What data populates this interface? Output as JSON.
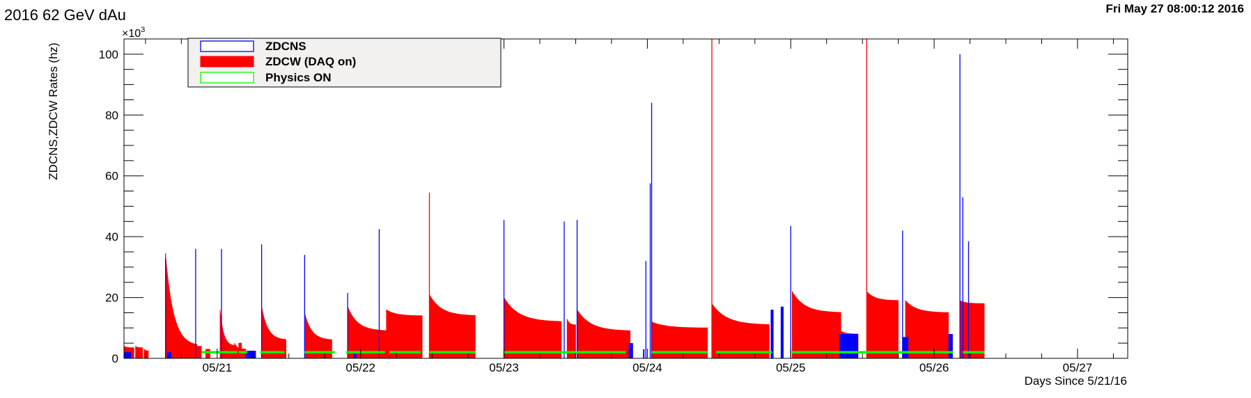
{
  "header": {
    "title": "2016 62 GeV dAu",
    "timestamp": "Fri May 27 08:00:12 2016"
  },
  "chart_data": {
    "type": "bar",
    "xlabel": "Days Since 5/21/16",
    "ylabel": "ZDCNS,ZDCW Rates (hz)",
    "y_multiplier_label": "×10",
    "y_multiplier_exp": "3",
    "y_multiplier": 1000,
    "xlim": [
      -0.65,
      6.35
    ],
    "ylim": [
      0,
      105
    ],
    "x_ticks": [
      {
        "x": 0,
        "label": "05/21"
      },
      {
        "x": 1,
        "label": "05/22"
      },
      {
        "x": 2,
        "label": "05/23"
      },
      {
        "x": 3,
        "label": "05/24"
      },
      {
        "x": 4,
        "label": "05/25"
      },
      {
        "x": 5,
        "label": "05/26"
      },
      {
        "x": 6,
        "label": "05/27"
      }
    ],
    "y_ticks": [
      0,
      20,
      40,
      60,
      80,
      100
    ],
    "legend_position": "top-left",
    "legend": [
      {
        "label": "ZDCNS",
        "color": "#0000ff",
        "series": "zdcns"
      },
      {
        "label": "ZDCW (DAQ on)",
        "color": "#ff0000",
        "series": "zdcw"
      },
      {
        "label": "Physics ON",
        "color": "#00ff00",
        "series": "physics"
      }
    ],
    "zdcw_fills": [
      {
        "start": -0.65,
        "end": -0.58,
        "peak": 4,
        "tail": 3.5
      },
      {
        "start": -0.57,
        "end": -0.52,
        "peak": 4,
        "tail": 3.5
      },
      {
        "start": -0.51,
        "end": -0.48,
        "peak": 3,
        "tail": 2.5
      },
      {
        "start": -0.36,
        "end": -0.14,
        "peak": 34,
        "tail": 4
      },
      {
        "start": -0.14,
        "end": -0.11,
        "peak": 4,
        "tail": 4
      },
      {
        "start": -0.08,
        "end": -0.05,
        "peak": 3,
        "tail": 3
      },
      {
        "start": 0.02,
        "end": 0.12,
        "peak": 16,
        "tail": 4
      },
      {
        "start": 0.12,
        "end": 0.2,
        "peak": 5,
        "tail": 3
      },
      {
        "start": 0.31,
        "end": 0.48,
        "peak": 17,
        "tail": 6
      },
      {
        "start": 0.15,
        "end": 0.17,
        "peak": 5,
        "tail": 5
      },
      {
        "start": 0.61,
        "end": 0.8,
        "peak": 15,
        "tail": 6
      },
      {
        "start": 0.91,
        "end": 1.18,
        "peak": 17,
        "tail": 9
      },
      {
        "start": 1.18,
        "end": 1.43,
        "peak": 16,
        "tail": 14
      },
      {
        "start": 1.48,
        "end": 1.8,
        "peak": 21,
        "tail": 14
      },
      {
        "start": 2.0,
        "end": 2.4,
        "peak": 20,
        "tail": 12
      },
      {
        "start": 2.44,
        "end": 2.5,
        "peak": 13,
        "tail": 11
      },
      {
        "start": 2.51,
        "end": 2.88,
        "peak": 16,
        "tail": 9
      },
      {
        "start": 3.03,
        "end": 3.42,
        "peak": 12,
        "tail": 10
      },
      {
        "start": 3.45,
        "end": 3.85,
        "peak": 18,
        "tail": 11
      },
      {
        "start": 4.01,
        "end": 4.35,
        "peak": 22,
        "tail": 15
      },
      {
        "start": 4.35,
        "end": 4.47,
        "peak": 9,
        "tail": 8
      },
      {
        "start": 4.53,
        "end": 4.75,
        "peak": 22,
        "tail": 19
      },
      {
        "start": 4.8,
        "end": 5.1,
        "peak": 19,
        "tail": 15
      },
      {
        "start": 5.18,
        "end": 5.35,
        "peak": 19,
        "tail": 18
      }
    ],
    "zdcw_spikes": [
      {
        "x": -0.36,
        "y": 34.5
      },
      {
        "x": 0.95,
        "y": 1.5
      },
      {
        "x": 1.48,
        "y": 54.5
      },
      {
        "x": 3.45,
        "y": 105
      },
      {
        "x": 4.53,
        "y": 105
      }
    ],
    "zdcns_spikes": [
      {
        "x": -0.36,
        "y": 33
      },
      {
        "x": -0.15,
        "y": 36
      },
      {
        "x": 0.03,
        "y": 36
      },
      {
        "x": 0.31,
        "y": 37.5
      },
      {
        "x": 0.61,
        "y": 34
      },
      {
        "x": 0.91,
        "y": 21.5
      },
      {
        "x": 1.13,
        "y": 42.5
      },
      {
        "x": 2.0,
        "y": 45.5
      },
      {
        "x": 2.42,
        "y": 45
      },
      {
        "x": 2.51,
        "y": 45.5
      },
      {
        "x": 2.99,
        "y": 32
      },
      {
        "x": 3.03,
        "y": 84
      },
      {
        "x": 3.02,
        "y": 57.5
      },
      {
        "x": 4.0,
        "y": 43.5
      },
      {
        "x": 4.78,
        "y": 42
      },
      {
        "x": 5.18,
        "y": 100
      },
      {
        "x": 5.2,
        "y": 53
      },
      {
        "x": 5.24,
        "y": 38.5
      }
    ],
    "zdcns_blocks": [
      {
        "start": -0.65,
        "end": -0.6,
        "y": 2
      },
      {
        "start": -0.35,
        "end": -0.32,
        "y": 2
      },
      {
        "start": 0.2,
        "end": 0.27,
        "y": 2.5
      },
      {
        "start": 0.95,
        "end": 0.97,
        "y": 1.5
      },
      {
        "start": 2.87,
        "end": 2.9,
        "y": 5
      },
      {
        "start": 2.97,
        "end": 2.98,
        "y": 3
      },
      {
        "start": 3.86,
        "end": 3.88,
        "y": 16
      },
      {
        "start": 3.93,
        "end": 3.95,
        "y": 17
      },
      {
        "start": 4.34,
        "end": 4.47,
        "y": 8
      },
      {
        "start": 4.78,
        "end": 4.82,
        "y": 7
      },
      {
        "start": 5.1,
        "end": 5.13,
        "y": 8
      }
    ],
    "physics_on": [
      {
        "start": -0.11,
        "end": 0.14
      },
      {
        "start": 0.15,
        "end": 0.21
      },
      {
        "start": 0.3,
        "end": 0.47
      },
      {
        "start": 0.61,
        "end": 0.82
      },
      {
        "start": 0.9,
        "end": 1.17
      },
      {
        "start": 1.2,
        "end": 1.42
      },
      {
        "start": 1.48,
        "end": 1.8
      },
      {
        "start": 2.0,
        "end": 2.85
      },
      {
        "start": 3.03,
        "end": 3.42
      },
      {
        "start": 3.48,
        "end": 3.87
      },
      {
        "start": 4.01,
        "end": 5.13
      },
      {
        "start": 5.2,
        "end": 5.35
      }
    ]
  }
}
